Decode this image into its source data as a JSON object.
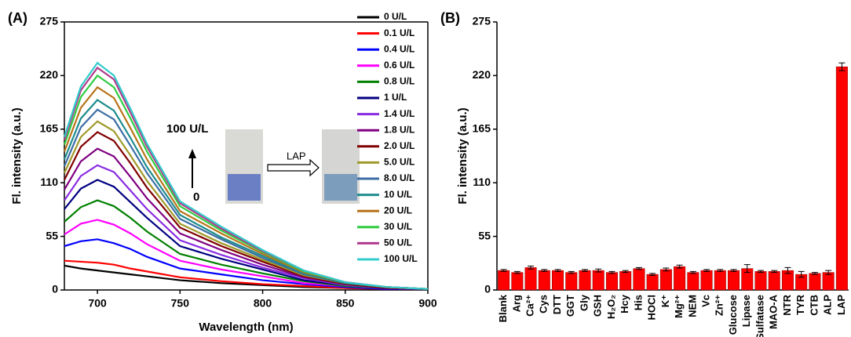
{
  "chart_data": [
    {
      "type": "line",
      "panel_label": "(A)",
      "x_label": "Wavelength (nm)",
      "y_label": "Fl. intensity (a.u.)",
      "annotations": [
        "100 U/L",
        "0",
        "LAP"
      ],
      "x": [
        680,
        690,
        700,
        710,
        720,
        730,
        750,
        775,
        800,
        825,
        850,
        875,
        900
      ],
      "xlim": [
        680,
        900
      ],
      "xticks": [
        700,
        750,
        800,
        850,
        900
      ],
      "ylim": [
        0,
        275
      ],
      "yticks": [
        0,
        55,
        110,
        165,
        220,
        275
      ],
      "series": [
        {
          "name": "0 U/L",
          "color": "#000000",
          "values": [
            25,
            22,
            20,
            18,
            16,
            14,
            10,
            7,
            5,
            3,
            2,
            1,
            1
          ]
        },
        {
          "name": "0.1 U/L",
          "color": "#ff0000",
          "values": [
            30,
            29,
            28,
            26,
            22,
            19,
            13,
            9,
            6,
            4,
            2,
            1,
            1
          ]
        },
        {
          "name": "0.4 U/L",
          "color": "#0000ff",
          "values": [
            45,
            50,
            52,
            48,
            42,
            34,
            22,
            16,
            10,
            6,
            3,
            1,
            1
          ]
        },
        {
          "name": "0.6 U/L",
          "color": "#ff00ff",
          "values": [
            57,
            68,
            72,
            67,
            58,
            47,
            30,
            21,
            14,
            7,
            4,
            2,
            1
          ]
        },
        {
          "name": "0.8 U/L",
          "color": "#008000",
          "values": [
            70,
            85,
            92,
            86,
            74,
            60,
            37,
            26,
            17,
            9,
            4,
            2,
            1
          ]
        },
        {
          "name": "1 U/L",
          "color": "#000080",
          "values": [
            83,
            104,
            113,
            106,
            90,
            74,
            45,
            32,
            21,
            10,
            5,
            2,
            1
          ]
        },
        {
          "name": "1.4 U/L",
          "color": "#8a2be2",
          "values": [
            92,
            117,
            128,
            121,
            102,
            83,
            51,
            36,
            23,
            12,
            5,
            2,
            1
          ]
        },
        {
          "name": "1.8 U/L",
          "color": "#800080",
          "values": [
            103,
            132,
            145,
            137,
            116,
            94,
            58,
            41,
            26,
            13,
            6,
            2,
            1
          ]
        },
        {
          "name": "2.0 U/L",
          "color": "#800000",
          "values": [
            113,
            147,
            162,
            153,
            130,
            105,
            64,
            45,
            29,
            14,
            6,
            2,
            1
          ]
        },
        {
          "name": "5.0 U/L",
          "color": "#a09a2a",
          "values": [
            120,
            157,
            173,
            163,
            138,
            112,
            68,
            48,
            31,
            15,
            7,
            3,
            1
          ]
        },
        {
          "name": "8.0 U/L",
          "color": "#3b6ea5",
          "values": [
            127,
            167,
            185,
            175,
            148,
            120,
            73,
            52,
            33,
            16,
            7,
            3,
            1
          ]
        },
        {
          "name": "10 U/L",
          "color": "#1e8c8c",
          "values": [
            134,
            176,
            195,
            184,
            156,
            126,
            77,
            54,
            35,
            17,
            7,
            3,
            1
          ]
        },
        {
          "name": "20 U/L",
          "color": "#b8741a",
          "values": [
            142,
            187,
            208,
            197,
            166,
            134,
            81,
            58,
            37,
            18,
            8,
            3,
            1
          ]
        },
        {
          "name": "30 U/L",
          "color": "#2ecc40",
          "values": [
            149,
            198,
            220,
            208,
            176,
            142,
            86,
            61,
            39,
            19,
            8,
            3,
            1
          ]
        },
        {
          "name": "50 U/L",
          "color": "#b03c8c",
          "values": [
            154,
            205,
            228,
            216,
            182,
            147,
            89,
            63,
            40,
            20,
            8,
            3,
            1
          ]
        },
        {
          "name": "100 U/L",
          "color": "#33cccc",
          "values": [
            157,
            209,
            233,
            220,
            186,
            150,
            91,
            65,
            41,
            20,
            8,
            3,
            1
          ]
        }
      ]
    },
    {
      "type": "bar",
      "panel_label": "(B)",
      "y_label": "Fl. intensity (a.u.)",
      "color": "#ff0000",
      "categories": [
        "Blank",
        "Arg",
        "Ca²⁺",
        "Cys",
        "DTT",
        "GGT",
        "Gly",
        "GSH",
        "H₂O₂",
        "Hcy",
        "His",
        "HOCl",
        "K⁺",
        "Mg²⁺",
        "NEM",
        "Vc",
        "Zn²⁺",
        "Glucose",
        "Lipase",
        "Sulfatase",
        "MAO-A",
        "NTR",
        "TYR",
        "CTB",
        "ALP",
        "LAP"
      ],
      "values": [
        20,
        18,
        23,
        20,
        20,
        18,
        20,
        20,
        18,
        19,
        22,
        16,
        21,
        24,
        18,
        20,
        20,
        20,
        22,
        19,
        19,
        20,
        16,
        17,
        18,
        229
      ],
      "errors": [
        1,
        1,
        1.5,
        1,
        1,
        1,
        1,
        1.5,
        1,
        1,
        1,
        1,
        1.5,
        1.5,
        1,
        1,
        1,
        1,
        4,
        1,
        1,
        3,
        3,
        1,
        2,
        4
      ],
      "ylim": [
        0,
        275
      ],
      "yticks": [
        0,
        55,
        110,
        165,
        220,
        275
      ]
    }
  ]
}
